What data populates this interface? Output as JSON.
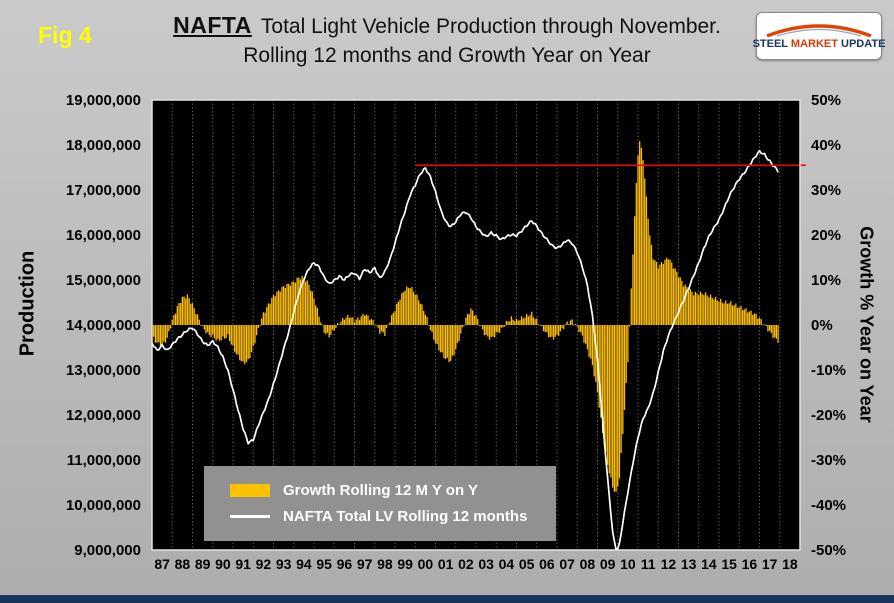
{
  "header": {
    "fig_label": "Fig 4",
    "title_emphasis": "NAFTA",
    "title_rest": "Total Light Vehicle Production through November.",
    "title_line2": "Rolling 12 months and Growth Year on Year"
  },
  "logo": {
    "words": [
      "STEEL",
      "MARKET",
      "UPDATE"
    ]
  },
  "colors": {
    "background": "#bdbdbd",
    "plot_background": "#000000",
    "bar_series": "#ffc000",
    "line_series": "#ffffff",
    "annotation_line": "#ff0000",
    "fig_label": "#ffff00",
    "legend_background": "#919191",
    "bottom_strip": "#17365d"
  },
  "chart_data": {
    "type": "combo",
    "title": "NAFTA Total Light Vehicle Production through November. Rolling 12 months and Growth Year on Year",
    "plot_bg": "#000000",
    "grid": "vertical-dotted",
    "legend_position": "bottom-center-inside",
    "x_axis": {
      "start_year": 1987,
      "end_year": 2018,
      "tick_labels": [
        "87",
        "88",
        "89",
        "90",
        "91",
        "92",
        "93",
        "94",
        "95",
        "96",
        "97",
        "98",
        "99",
        "00",
        "01",
        "02",
        "03",
        "04",
        "05",
        "06",
        "07",
        "08",
        "09",
        "10",
        "11",
        "12",
        "13",
        "14",
        "15",
        "16",
        "17",
        "18"
      ]
    },
    "left_axis": {
      "title": "Production",
      "min": 9000000,
      "max": 19000000,
      "step": 1000000,
      "tick_labels": [
        "19,000,000",
        "18,000,000",
        "17,000,000",
        "16,000,000",
        "15,000,000",
        "14,000,000",
        "13,000,000",
        "12,000,000",
        "11,000,000",
        "10,000,000",
        "9,000,000"
      ]
    },
    "right_axis": {
      "title": "Growth % Year on Year",
      "min": -50,
      "max": 50,
      "step": 10,
      "tick_labels": [
        "50%",
        "40%",
        "30%",
        "20%",
        "10%",
        "0%",
        "-10%",
        "-20%",
        "-30%",
        "-40%",
        "-50%"
      ]
    },
    "series": [
      {
        "name": "Growth Rolling 12 M Y on Y",
        "type": "bar",
        "axis": "right",
        "color": "#ffc000",
        "units": "percent",
        "points": [
          [
            1987.0,
            -2.5
          ],
          [
            1987.25,
            -4
          ],
          [
            1987.5,
            -4.5
          ],
          [
            1987.75,
            -3
          ],
          [
            1988.0,
            1
          ],
          [
            1988.25,
            4
          ],
          [
            1988.5,
            6
          ],
          [
            1988.75,
            6.5
          ],
          [
            1989.0,
            4.5
          ],
          [
            1989.25,
            2
          ],
          [
            1989.5,
            -0.5
          ],
          [
            1989.75,
            -2
          ],
          [
            1990.0,
            -2.5
          ],
          [
            1990.25,
            -3.5
          ],
          [
            1990.5,
            -3
          ],
          [
            1990.75,
            -2.5
          ],
          [
            1991.0,
            -5
          ],
          [
            1991.25,
            -7
          ],
          [
            1991.5,
            -8.5
          ],
          [
            1991.75,
            -8
          ],
          [
            1992.0,
            -5
          ],
          [
            1992.25,
            -1
          ],
          [
            1992.5,
            2.5
          ],
          [
            1992.75,
            4.5
          ],
          [
            1993.0,
            6.5
          ],
          [
            1993.25,
            7.5
          ],
          [
            1993.5,
            8.5
          ],
          [
            1993.75,
            9
          ],
          [
            1994.0,
            9.5
          ],
          [
            1994.25,
            10.5
          ],
          [
            1994.5,
            10.5
          ],
          [
            1994.75,
            9
          ],
          [
            1995.0,
            6
          ],
          [
            1995.25,
            2
          ],
          [
            1995.5,
            -1.5
          ],
          [
            1995.75,
            -2.5
          ],
          [
            1996.0,
            -1
          ],
          [
            1996.25,
            0.5
          ],
          [
            1996.5,
            1.5
          ],
          [
            1996.75,
            2
          ],
          [
            1997.0,
            1
          ],
          [
            1997.25,
            1.5
          ],
          [
            1997.5,
            2.5
          ],
          [
            1997.75,
            1.5
          ],
          [
            1998.0,
            0.5
          ],
          [
            1998.25,
            -1.5
          ],
          [
            1998.5,
            -2
          ],
          [
            1998.75,
            1
          ],
          [
            1999.0,
            3.5
          ],
          [
            1999.25,
            6
          ],
          [
            1999.5,
            8
          ],
          [
            1999.75,
            8.5
          ],
          [
            2000.0,
            7
          ],
          [
            2000.25,
            5
          ],
          [
            2000.5,
            2.5
          ],
          [
            2000.75,
            -1
          ],
          [
            2001.0,
            -4
          ],
          [
            2001.25,
            -6
          ],
          [
            2001.5,
            -7.5
          ],
          [
            2001.75,
            -8
          ],
          [
            2002.0,
            -5.5
          ],
          [
            2002.25,
            -2
          ],
          [
            2002.5,
            1.5
          ],
          [
            2002.75,
            3.5
          ],
          [
            2003.0,
            2
          ],
          [
            2003.25,
            -0.5
          ],
          [
            2003.5,
            -2.5
          ],
          [
            2003.75,
            -3
          ],
          [
            2004.0,
            -2
          ],
          [
            2004.25,
            -1
          ],
          [
            2004.5,
            0.5
          ],
          [
            2004.75,
            1.5
          ],
          [
            2005.0,
            1
          ],
          [
            2005.25,
            1.5
          ],
          [
            2005.5,
            2
          ],
          [
            2005.75,
            2.5
          ],
          [
            2006.0,
            1
          ],
          [
            2006.25,
            -0.5
          ],
          [
            2006.5,
            -2
          ],
          [
            2006.75,
            -3
          ],
          [
            2007.0,
            -2.5
          ],
          [
            2007.25,
            -1
          ],
          [
            2007.5,
            0.5
          ],
          [
            2007.75,
            1
          ],
          [
            2008.0,
            -0.5
          ],
          [
            2008.25,
            -2.5
          ],
          [
            2008.5,
            -5.5
          ],
          [
            2008.75,
            -9
          ],
          [
            2009.0,
            -15
          ],
          [
            2009.25,
            -24
          ],
          [
            2009.5,
            -31
          ],
          [
            2009.75,
            -36
          ],
          [
            2009.92,
            -37.5
          ],
          [
            2010.08,
            -34
          ],
          [
            2010.25,
            -24
          ],
          [
            2010.5,
            -8
          ],
          [
            2010.67,
            8
          ],
          [
            2010.83,
            24
          ],
          [
            2011.0,
            38
          ],
          [
            2011.08,
            41
          ],
          [
            2011.25,
            37
          ],
          [
            2011.42,
            28
          ],
          [
            2011.58,
            20
          ],
          [
            2011.75,
            15
          ],
          [
            2012.0,
            13
          ],
          [
            2012.25,
            14
          ],
          [
            2012.5,
            15
          ],
          [
            2012.75,
            13
          ],
          [
            2013.0,
            11
          ],
          [
            2013.25,
            9
          ],
          [
            2013.5,
            8
          ],
          [
            2013.75,
            7
          ],
          [
            2014.0,
            7
          ],
          [
            2014.25,
            7
          ],
          [
            2014.5,
            6.5
          ],
          [
            2014.75,
            6
          ],
          [
            2015.0,
            5.5
          ],
          [
            2015.25,
            5
          ],
          [
            2015.5,
            5
          ],
          [
            2015.75,
            4.5
          ],
          [
            2016.0,
            4
          ],
          [
            2016.25,
            3.5
          ],
          [
            2016.5,
            3
          ],
          [
            2016.75,
            2.5
          ],
          [
            2017.0,
            1.5
          ],
          [
            2017.25,
            0
          ],
          [
            2017.5,
            -1.5
          ],
          [
            2017.75,
            -3
          ],
          [
            2017.92,
            -3.5
          ]
        ]
      },
      {
        "name": "NAFTA Total LV Rolling 12 months",
        "type": "line",
        "axis": "left",
        "color": "#ffffff",
        "units": "million vehicles",
        "points": [
          [
            1987.0,
            13.6
          ],
          [
            1987.25,
            13.45
          ],
          [
            1987.5,
            13.55
          ],
          [
            1987.75,
            13.42
          ],
          [
            1988.0,
            13.55
          ],
          [
            1988.25,
            13.7
          ],
          [
            1988.5,
            13.8
          ],
          [
            1988.75,
            13.88
          ],
          [
            1989.0,
            13.92
          ],
          [
            1989.25,
            13.8
          ],
          [
            1989.5,
            13.65
          ],
          [
            1989.75,
            13.55
          ],
          [
            1990.0,
            13.62
          ],
          [
            1990.25,
            13.5
          ],
          [
            1990.5,
            13.3
          ],
          [
            1990.75,
            13.0
          ],
          [
            1991.0,
            12.55
          ],
          [
            1991.25,
            12.1
          ],
          [
            1991.5,
            11.7
          ],
          [
            1991.75,
            11.4
          ],
          [
            1992.0,
            11.45
          ],
          [
            1992.25,
            11.75
          ],
          [
            1992.5,
            12.05
          ],
          [
            1992.75,
            12.35
          ],
          [
            1993.0,
            12.7
          ],
          [
            1993.25,
            13.05
          ],
          [
            1993.5,
            13.45
          ],
          [
            1993.75,
            13.85
          ],
          [
            1994.0,
            14.3
          ],
          [
            1994.25,
            14.7
          ],
          [
            1994.5,
            15.0
          ],
          [
            1994.75,
            15.25
          ],
          [
            1995.0,
            15.4
          ],
          [
            1995.25,
            15.3
          ],
          [
            1995.5,
            15.05
          ],
          [
            1995.75,
            14.9
          ],
          [
            1996.0,
            15.0
          ],
          [
            1996.25,
            15.1
          ],
          [
            1996.5,
            15.0
          ],
          [
            1996.75,
            15.1
          ],
          [
            1997.0,
            15.15
          ],
          [
            1997.25,
            15.05
          ],
          [
            1997.5,
            15.25
          ],
          [
            1997.75,
            15.15
          ],
          [
            1998.0,
            15.25
          ],
          [
            1998.25,
            15.05
          ],
          [
            1998.5,
            15.2
          ],
          [
            1998.75,
            15.45
          ],
          [
            1999.0,
            15.8
          ],
          [
            1999.25,
            16.2
          ],
          [
            1999.5,
            16.55
          ],
          [
            1999.75,
            16.9
          ],
          [
            2000.0,
            17.1
          ],
          [
            2000.25,
            17.35
          ],
          [
            2000.5,
            17.5
          ],
          [
            2000.75,
            17.3
          ],
          [
            2001.0,
            16.95
          ],
          [
            2001.25,
            16.55
          ],
          [
            2001.5,
            16.3
          ],
          [
            2001.75,
            16.2
          ],
          [
            2002.0,
            16.3
          ],
          [
            2002.25,
            16.45
          ],
          [
            2002.5,
            16.5
          ],
          [
            2002.75,
            16.4
          ],
          [
            2003.0,
            16.2
          ],
          [
            2003.25,
            16.05
          ],
          [
            2003.5,
            15.95
          ],
          [
            2003.75,
            16.05
          ],
          [
            2004.0,
            16.0
          ],
          [
            2004.25,
            15.9
          ],
          [
            2004.5,
            15.95
          ],
          [
            2004.75,
            16.0
          ],
          [
            2005.0,
            16.0
          ],
          [
            2005.25,
            16.1
          ],
          [
            2005.5,
            16.2
          ],
          [
            2005.75,
            16.3
          ],
          [
            2006.0,
            16.2
          ],
          [
            2006.25,
            16.05
          ],
          [
            2006.5,
            15.9
          ],
          [
            2006.75,
            15.75
          ],
          [
            2007.0,
            15.7
          ],
          [
            2007.25,
            15.8
          ],
          [
            2007.5,
            15.9
          ],
          [
            2007.75,
            15.8
          ],
          [
            2008.0,
            15.6
          ],
          [
            2008.25,
            15.3
          ],
          [
            2008.5,
            14.9
          ],
          [
            2008.75,
            14.2
          ],
          [
            2009.0,
            13.2
          ],
          [
            2009.25,
            11.9
          ],
          [
            2009.5,
            10.6
          ],
          [
            2009.75,
            9.4
          ],
          [
            2009.92,
            8.95
          ],
          [
            2010.08,
            9.1
          ],
          [
            2010.25,
            9.6
          ],
          [
            2010.5,
            10.3
          ],
          [
            2010.75,
            10.95
          ],
          [
            2011.0,
            11.5
          ],
          [
            2011.25,
            11.9
          ],
          [
            2011.5,
            12.15
          ],
          [
            2011.75,
            12.5
          ],
          [
            2012.0,
            12.95
          ],
          [
            2012.25,
            13.4
          ],
          [
            2012.5,
            13.75
          ],
          [
            2012.75,
            14.05
          ],
          [
            2013.0,
            14.3
          ],
          [
            2013.25,
            14.55
          ],
          [
            2013.5,
            14.8
          ],
          [
            2013.75,
            15.1
          ],
          [
            2014.0,
            15.4
          ],
          [
            2014.25,
            15.7
          ],
          [
            2014.5,
            15.95
          ],
          [
            2014.75,
            16.15
          ],
          [
            2015.0,
            16.35
          ],
          [
            2015.25,
            16.6
          ],
          [
            2015.5,
            16.85
          ],
          [
            2015.75,
            17.05
          ],
          [
            2016.0,
            17.25
          ],
          [
            2016.25,
            17.4
          ],
          [
            2016.5,
            17.55
          ],
          [
            2016.75,
            17.7
          ],
          [
            2017.0,
            17.85
          ],
          [
            2017.25,
            17.8
          ],
          [
            2017.5,
            17.65
          ],
          [
            2017.75,
            17.5
          ],
          [
            2017.92,
            17.4
          ]
        ]
      }
    ],
    "annotations": [
      {
        "type": "hline",
        "axis": "left",
        "value_million": 17.55,
        "from_year": 2000,
        "color": "#ff0000"
      }
    ]
  }
}
